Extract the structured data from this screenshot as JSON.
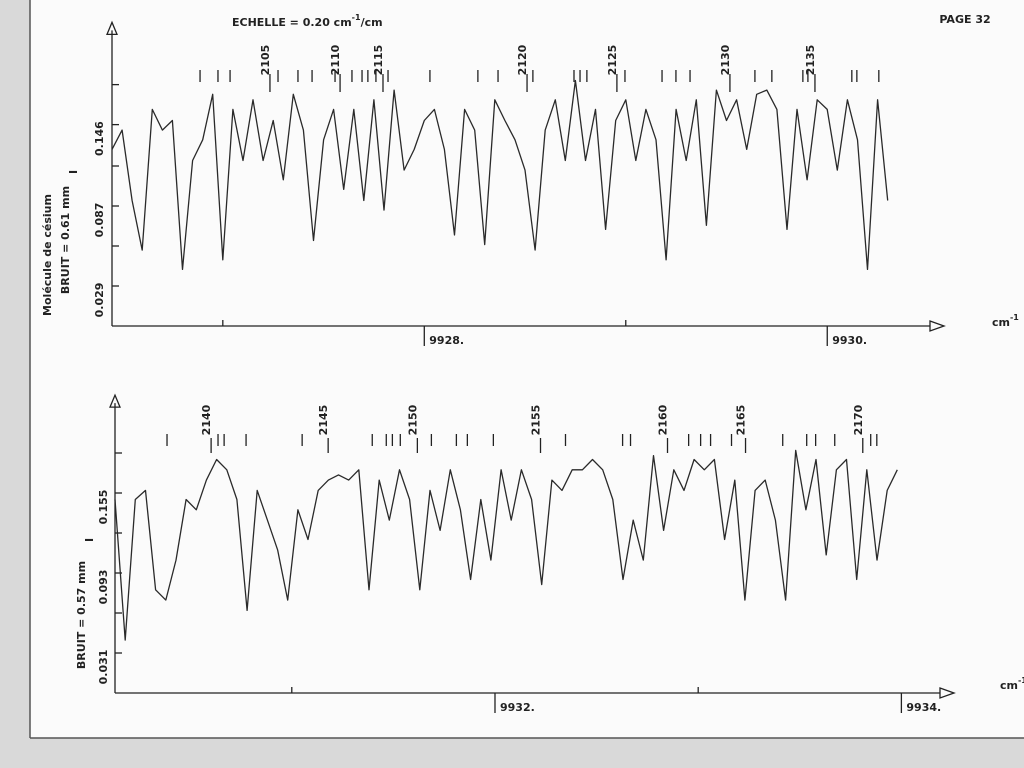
{
  "page": {
    "number": "PAGE 32",
    "scale_text": [
      "ECHELLE = 0.20 cm",
      "-1",
      "/cm"
    ],
    "molecule": "Molécule de césium"
  },
  "chart_data": [
    {
      "type": "line",
      "color": "#2a2a2a",
      "noise_label": "BRUIT = 0.61 mm",
      "y_symbol": "I",
      "x_unit": [
        "cm",
        "-1"
      ],
      "xlim": [
        9926.45,
        9930.51
      ],
      "ylim": [
        0,
        0.21
      ],
      "xticks": [
        {
          "value": 9928,
          "label": "9928."
        },
        {
          "value": 9930,
          "label": "9930."
        }
      ],
      "x_minor_ticks": [
        9927,
        9929
      ],
      "yticks": [
        0.029,
        0.087,
        0.146
      ],
      "y_minor_ticks": [
        0.058,
        0.116,
        0.175
      ],
      "x": [
        9926.45,
        9926.5,
        9926.55,
        9926.6,
        9926.65,
        9926.7,
        9926.75,
        9926.8,
        9926.85,
        9926.9,
        9926.95,
        9927.0,
        9927.05,
        9927.1,
        9927.15,
        9927.2,
        9927.25,
        9927.3,
        9927.35,
        9927.4,
        9927.45,
        9927.5,
        9927.55,
        9927.6,
        9927.65,
        9927.7,
        9927.75,
        9927.8,
        9927.85,
        9927.9,
        9927.95,
        9928.0,
        9928.05,
        9928.1,
        9928.15,
        9928.2,
        9928.25,
        9928.3,
        9928.35,
        9928.4,
        9928.45,
        9928.5,
        9928.55,
        9928.6,
        9928.65,
        9928.7,
        9928.75,
        9928.8,
        9928.85,
        9928.9,
        9928.95,
        9929.0,
        9929.05,
        9929.1,
        9929.15,
        9929.2,
        9929.25,
        9929.3,
        9929.35,
        9929.4,
        9929.45,
        9929.5,
        9929.55,
        9929.6,
        9929.65,
        9929.7,
        9929.75,
        9929.8,
        9929.85,
        9929.9,
        9929.95,
        9930.0,
        9930.05,
        9930.1,
        9930.15,
        9930.2,
        9930.25,
        9930.3
      ],
      "values": [
        0.128,
        0.142,
        0.091,
        0.055,
        0.157,
        0.142,
        0.149,
        0.041,
        0.12,
        0.135,
        0.168,
        0.048,
        0.157,
        0.12,
        0.164,
        0.12,
        0.149,
        0.106,
        0.168,
        0.142,
        0.062,
        0.135,
        0.157,
        0.099,
        0.157,
        0.091,
        0.164,
        0.084,
        0.171,
        0.113,
        0.128,
        0.149,
        0.157,
        0.128,
        0.066,
        0.157,
        0.142,
        0.059,
        0.164,
        0.149,
        0.135,
        0.113,
        0.055,
        0.142,
        0.164,
        0.12,
        0.178,
        0.12,
        0.157,
        0.07,
        0.149,
        0.164,
        0.12,
        0.157,
        0.135,
        0.048,
        0.157,
        0.12,
        0.164,
        0.073,
        0.171,
        0.149,
        0.164,
        0.128,
        0.168,
        0.171,
        0.157,
        0.07,
        0.157,
        0.106,
        0.164,
        0.157,
        0.113,
        0.164,
        0.135,
        0.041,
        0.164,
        0.091
      ],
      "line_markers": {
        "labeled": [
          {
            "x": 9927.234,
            "label": "2105"
          },
          {
            "x": 9927.582,
            "label": "2110"
          },
          {
            "x": 9927.795,
            "label": "2115"
          },
          {
            "x": 9928.51,
            "label": "2120"
          },
          {
            "x": 9928.956,
            "label": "2125"
          },
          {
            "x": 9929.517,
            "label": "2130"
          },
          {
            "x": 9929.939,
            "label": "2135"
          }
        ],
        "unlabeled": [
          9926.887,
          9926.976,
          9927.036,
          9927.274,
          9927.373,
          9927.443,
          9927.557,
          9927.641,
          9927.691,
          9927.72,
          9927.76,
          9927.82,
          9928.028,
          9928.266,
          9928.366,
          9928.539,
          9928.743,
          9928.773,
          9928.807,
          9928.996,
          9929.18,
          9929.249,
          9929.319,
          9929.641,
          9929.725,
          9929.879,
          9929.904,
          9930.122,
          9930.147,
          9930.256
        ]
      }
    },
    {
      "type": "line",
      "color": "#2a2a2a",
      "noise_label": "BRUIT = 0.57 mm",
      "y_symbol": "I",
      "x_unit": [
        "cm",
        "-1"
      ],
      "xlim": [
        9930.13,
        9934.19
      ],
      "ylim": [
        0,
        0.22
      ],
      "xticks": [
        {
          "value": 9932,
          "label": "9932."
        },
        {
          "value": 9934,
          "label": "9934."
        }
      ],
      "x_minor_ticks": [
        9931,
        9933
      ],
      "yticks": [
        0.031,
        0.093,
        0.155
      ],
      "y_minor_ticks": [
        0.062,
        0.124,
        0.186
      ],
      "x": [
        9930.13,
        9930.18,
        9930.23,
        9930.28,
        9930.33,
        9930.38,
        9930.43,
        9930.48,
        9930.53,
        9930.58,
        9930.63,
        9930.68,
        9930.73,
        9930.78,
        9930.83,
        9930.88,
        9930.93,
        9930.98,
        9931.03,
        9931.08,
        9931.13,
        9931.18,
        9931.23,
        9931.28,
        9931.33,
        9931.38,
        9931.43,
        9931.48,
        9931.53,
        9931.58,
        9931.63,
        9931.68,
        9931.73,
        9931.78,
        9931.83,
        9931.88,
        9931.93,
        9931.98,
        9932.03,
        9932.08,
        9932.13,
        9932.18,
        9932.23,
        9932.28,
        9932.33,
        9932.38,
        9932.43,
        9932.48,
        9932.53,
        9932.58,
        9932.63,
        9932.68,
        9932.73,
        9932.78,
        9932.83,
        9932.88,
        9932.93,
        9932.98,
        9933.03,
        9933.08,
        9933.13,
        9933.18,
        9933.23,
        9933.28,
        9933.33,
        9933.38,
        9933.43,
        9933.48,
        9933.53,
        9933.58,
        9933.63,
        9933.68,
        9933.73,
        9933.78,
        9933.83,
        9933.88,
        9933.93,
        9933.98
      ],
      "values": [
        0.15,
        0.041,
        0.15,
        0.157,
        0.08,
        0.072,
        0.103,
        0.15,
        0.142,
        0.165,
        0.181,
        0.173,
        0.15,
        0.064,
        0.157,
        0.134,
        0.111,
        0.072,
        0.142,
        0.119,
        0.157,
        0.165,
        0.169,
        0.165,
        0.173,
        0.08,
        0.165,
        0.134,
        0.173,
        0.15,
        0.08,
        0.157,
        0.126,
        0.173,
        0.142,
        0.088,
        0.15,
        0.103,
        0.173,
        0.134,
        0.173,
        0.15,
        0.084,
        0.165,
        0.157,
        0.173,
        0.173,
        0.181,
        0.173,
        0.15,
        0.088,
        0.134,
        0.103,
        0.184,
        0.126,
        0.173,
        0.157,
        0.181,
        0.173,
        0.181,
        0.119,
        0.165,
        0.072,
        0.157,
        0.165,
        0.134,
        0.072,
        0.188,
        0.142,
        0.181,
        0.107,
        0.173,
        0.181,
        0.088,
        0.173,
        0.103,
        0.157,
        0.173
      ],
      "line_markers": {
        "labeled": [
          {
            "x": 9930.603,
            "label": "2140"
          },
          {
            "x": 9931.179,
            "label": "2145"
          },
          {
            "x": 9931.618,
            "label": "2150"
          },
          {
            "x": 9932.224,
            "label": "2155"
          },
          {
            "x": 9932.849,
            "label": "2160"
          },
          {
            "x": 9933.233,
            "label": "2165"
          },
          {
            "x": 9933.81,
            "label": "2170"
          }
        ],
        "unlabeled": [
          9930.386,
          9930.637,
          9930.667,
          9930.775,
          9931.051,
          9931.396,
          9931.465,
          9931.495,
          9931.534,
          9931.687,
          9931.81,
          9931.864,
          9931.992,
          9932.347,
          9932.628,
          9932.667,
          9932.953,
          9933.012,
          9933.061,
          9933.164,
          9933.416,
          9933.534,
          9933.578,
          9933.672,
          9933.849,
          9933.879
        ]
      }
    }
  ]
}
